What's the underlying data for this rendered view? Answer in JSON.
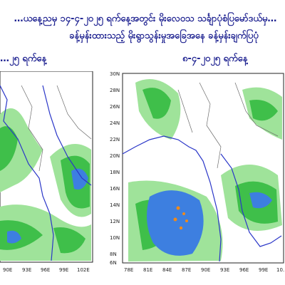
{
  "header": {
    "line1": "…ယနေ့ညမှ ၁၄-၄-၂၀၂၅ ရက်နေ့အတွင်း မိုးလေဝသ သင်္ချာပုံစံပြမော်ဒယ်မှ…",
    "line2": "ခန့်မှန်းထားသည့် မိုးရွာသွန်းမှုအခြေအနေ ခန့်မှန်းချက်ပြပုံ"
  },
  "left_panel": {
    "date_label": "…၂၅ ရက်နေ့",
    "x_ticks": [
      "90E",
      "93E",
      "96E",
      "99E",
      "102E"
    ]
  },
  "right_panel": {
    "date_label": "၈-၄-၂၀၂၅ ရက်နေ့",
    "y_ticks": [
      "30N",
      "28N",
      "26N",
      "24N",
      "22N",
      "20N",
      "18N",
      "16N",
      "14N",
      "12N",
      "10N",
      "8N",
      "6N"
    ],
    "x_ticks": [
      "78E",
      "81E",
      "84E",
      "87E",
      "90E",
      "93E",
      "96E",
      "99E",
      "10…"
    ]
  },
  "colors": {
    "title_text": "#1b1f8f",
    "coastline": "#2a36c8",
    "land_border": "#6b6b6b",
    "rain_light": "#9fe39a",
    "rain_moderate": "#3fbf4a",
    "rain_heavy": "#3d7fe0",
    "rain_very_heavy": "#f08a1a"
  }
}
